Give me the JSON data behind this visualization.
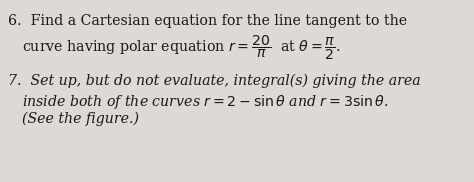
{
  "background_color": "#ddd9d4",
  "text_color": "#1a1a1a",
  "figsize": [
    4.74,
    1.82
  ],
  "dpi": 100,
  "line1": "6.  Find a Cartesian equation for the line tangent to the",
  "line2_pre": "curve having polar equation r $=$ $\\dfrac{20}{\\pi}$ at $\\theta$ $=$ $\\dfrac{\\pi}{2}$.",
  "line3": "7.  Set up, but do not evaluate, integral(s) giving the area",
  "line4": "inside both of the curves r $= 2 -$ sin $\\theta$ and r $= 3$ sin $\\theta$.",
  "line5": "(See the figure.)",
  "fontsize": 10.2,
  "indent1": 0.045,
  "indent2": 0.13
}
